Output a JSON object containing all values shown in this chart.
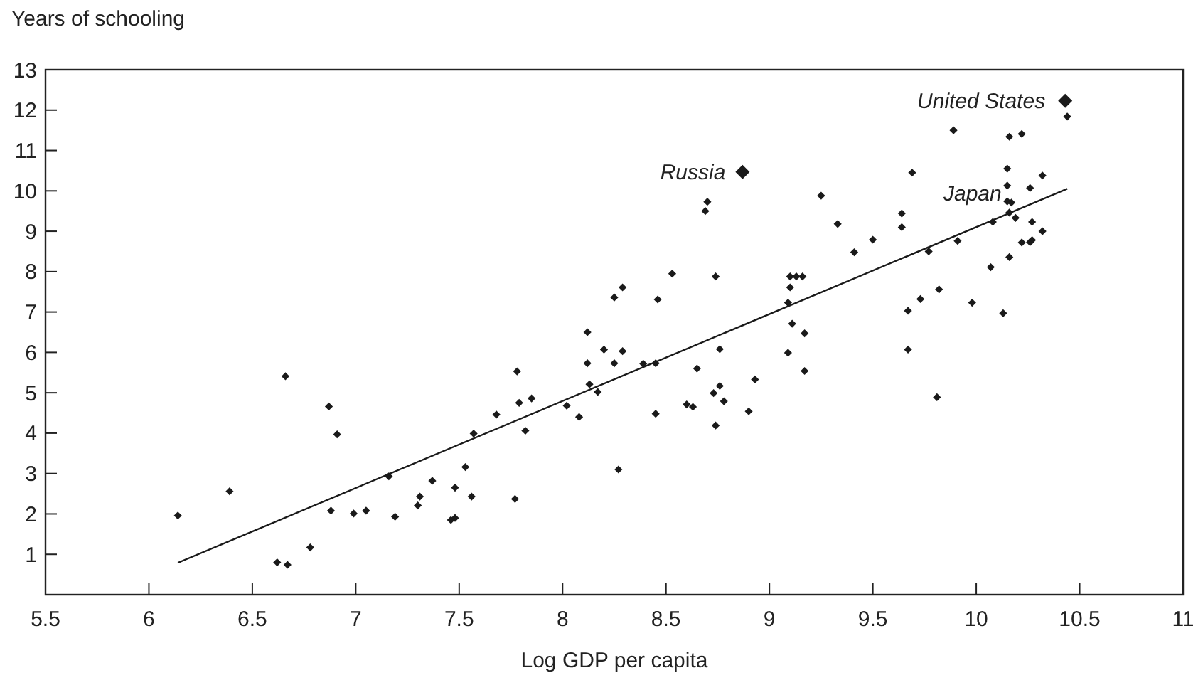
{
  "chart_data": {
    "type": "scatter",
    "xlabel": "Log GDP per capita",
    "ylabel": "Years of schooling",
    "xlim": [
      5.5,
      11
    ],
    "ylim": [
      0,
      13
    ],
    "xticks": [
      5.5,
      6,
      6.5,
      7,
      7.5,
      8,
      8.5,
      9,
      9.5,
      10,
      10.5,
      11
    ],
    "yticks": [
      1,
      2,
      3,
      4,
      5,
      6,
      7,
      8,
      9,
      10,
      11,
      12,
      13
    ],
    "grid": false,
    "marker": "diamond",
    "annotations": [
      {
        "text": "Russia",
        "x": 8.87,
        "y": 10.47
      },
      {
        "text": "United States",
        "x": 10.43,
        "y": 12.23
      },
      {
        "text": "Japan",
        "x": 10.15,
        "y": 9.74
      }
    ],
    "series": [
      {
        "color": "#1a1a1a",
        "x": [
          6.14,
          6.39,
          6.66,
          6.62,
          6.67,
          6.78,
          6.87,
          6.91,
          6.88,
          6.99,
          7.05,
          7.16,
          7.19,
          7.3,
          7.31,
          7.37,
          7.46,
          7.48,
          7.48,
          7.53,
          7.56,
          7.57,
          7.68,
          7.77,
          7.78,
          7.79,
          7.82,
          7.85,
          8.02,
          8.08,
          8.12,
          8.12,
          8.13,
          8.17,
          8.2,
          8.25,
          8.29,
          8.25,
          8.29,
          8.27,
          8.39,
          8.45,
          8.46,
          8.45,
          8.53,
          8.6,
          8.63,
          8.65,
          8.69,
          8.7,
          8.74,
          8.74,
          8.73,
          8.76,
          8.76,
          8.78,
          8.9,
          8.93,
          9.09,
          9.09,
          9.1,
          9.1,
          9.13,
          9.16,
          9.11,
          9.17,
          9.17,
          9.25,
          9.33,
          9.41,
          9.5,
          9.64,
          9.64,
          9.69,
          9.67,
          9.67,
          9.73,
          9.77,
          9.82,
          9.81,
          9.89,
          9.91,
          9.98,
          10.07,
          10.08,
          10.13,
          10.15,
          10.15,
          10.15,
          10.17,
          10.16,
          10.22,
          10.16,
          10.19,
          10.16,
          10.26,
          10.27,
          10.22,
          10.26,
          10.27,
          10.32,
          10.32,
          10.44
        ],
        "values": [
          1.96,
          2.56,
          5.41,
          0.8,
          0.74,
          1.17,
          4.66,
          3.97,
          2.08,
          2.01,
          2.08,
          2.93,
          1.93,
          2.21,
          2.43,
          2.82,
          1.85,
          1.9,
          2.65,
          3.16,
          2.43,
          3.99,
          4.46,
          2.37,
          5.53,
          4.75,
          4.06,
          4.86,
          4.68,
          4.4,
          6.5,
          5.73,
          5.21,
          5.02,
          6.07,
          7.36,
          7.61,
          5.73,
          6.03,
          3.1,
          5.72,
          5.73,
          7.31,
          4.48,
          7.95,
          4.71,
          4.65,
          5.6,
          9.5,
          9.73,
          7.88,
          4.19,
          4.99,
          6.08,
          5.17,
          4.79,
          4.54,
          5.33,
          5.99,
          7.23,
          7.61,
          7.88,
          7.88,
          7.88,
          6.71,
          6.47,
          5.54,
          9.88,
          9.18,
          8.48,
          8.79,
          9.44,
          9.1,
          10.45,
          7.03,
          6.07,
          7.32,
          8.5,
          7.56,
          4.89,
          11.5,
          8.76,
          7.23,
          8.11,
          9.23,
          6.97,
          10.55,
          10.13,
          9.74,
          9.71,
          11.34,
          11.41,
          9.46,
          9.33,
          8.36,
          10.07,
          9.23,
          8.72,
          8.73,
          8.78,
          10.38,
          9.0,
          11.84
        ]
      },
      {
        "color": "#1a1a1a",
        "x": [
          8.87,
          10.43
        ],
        "values": [
          10.47,
          12.23
        ]
      },
      {
        "type": "line",
        "color": "#1a1a1a",
        "line_style": "solid",
        "marker": "none",
        "x": [
          6.14,
          10.44
        ],
        "values": [
          0.79,
          10.05
        ]
      }
    ]
  }
}
